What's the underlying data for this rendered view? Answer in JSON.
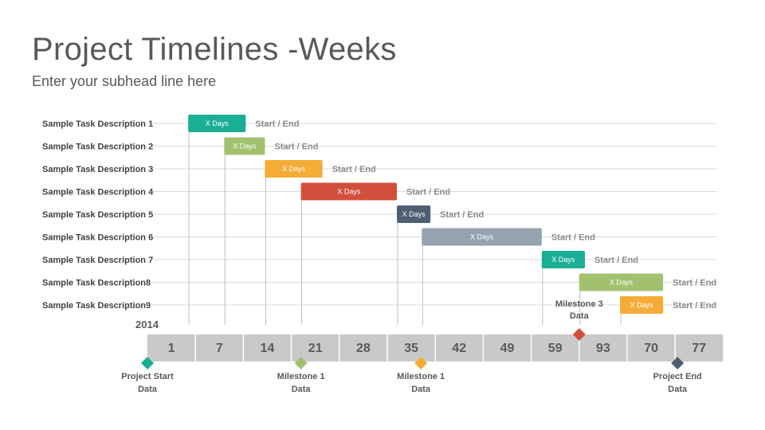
{
  "title": "Project Timelines -Weeks",
  "subtitle": "Enter your subhead line here",
  "year": "2014",
  "chart_data": {
    "type": "gantt",
    "axis_cells": [
      "1",
      "7",
      "14",
      "21",
      "28",
      "35",
      "42",
      "49",
      "59",
      "93",
      "70",
      "77"
    ],
    "tasks": [
      {
        "label": "Sample Task Description 1",
        "bar_label": "X Days",
        "end_label": "Start / End",
        "start": 0.85,
        "end": 2.05,
        "color": "#1aaf94"
      },
      {
        "label": "Sample Task Description 2",
        "bar_label": "X Days",
        "end_label": "Start / End",
        "start": 1.6,
        "end": 2.45,
        "color": "#a2c16f"
      },
      {
        "label": "Sample Task Description 3",
        "bar_label": "X Days",
        "end_label": "Start / End",
        "start": 2.45,
        "end": 3.65,
        "color": "#f5ac36"
      },
      {
        "label": "Sample Task Description 4",
        "bar_label": "X Days",
        "end_label": "Start / End",
        "start": 3.2,
        "end": 5.2,
        "color": "#d24f3d"
      },
      {
        "label": "Sample Task Description 5",
        "bar_label": "X Days",
        "end_label": "Start / End",
        "start": 5.2,
        "end": 5.9,
        "color": "#4e5f73"
      },
      {
        "label": "Sample Task Description 6",
        "bar_label": "X Days",
        "end_label": "Start / End",
        "start": 5.72,
        "end": 8.22,
        "color": "#95a3b1"
      },
      {
        "label": "Sample Task Description 7",
        "bar_label": "X Days",
        "end_label": "Start / End",
        "start": 8.22,
        "end": 9.12,
        "color": "#1aaf94"
      },
      {
        "label": "Sample Task Description8",
        "bar_label": "X Days",
        "end_label": "Start / End",
        "start": 9.0,
        "end": 10.75,
        "color": "#a2c16f"
      },
      {
        "label": "Sample Task Description9",
        "bar_label": "X Days",
        "end_label": "Start / End",
        "start": 9.85,
        "end": 10.75,
        "color": "#f5ac36"
      }
    ],
    "milestones": [
      {
        "lines": [
          "Project Start",
          "Data"
        ],
        "pos": 0.0,
        "color": "#1aaf94",
        "side": "below"
      },
      {
        "lines": [
          "Milestone 1",
          "Data"
        ],
        "pos": 3.2,
        "color": "#a2c16f",
        "side": "below"
      },
      {
        "lines": [
          "Milestone 1",
          "Data"
        ],
        "pos": 5.7,
        "color": "#f5ac36",
        "side": "below"
      },
      {
        "lines": [
          "Milestone 3",
          "Data"
        ],
        "pos": 9.0,
        "color": "#d24f3d",
        "side": "above"
      },
      {
        "lines": [
          "Project End",
          "Data"
        ],
        "pos": 11.05,
        "color": "#4e5f73",
        "side": "below"
      }
    ]
  }
}
